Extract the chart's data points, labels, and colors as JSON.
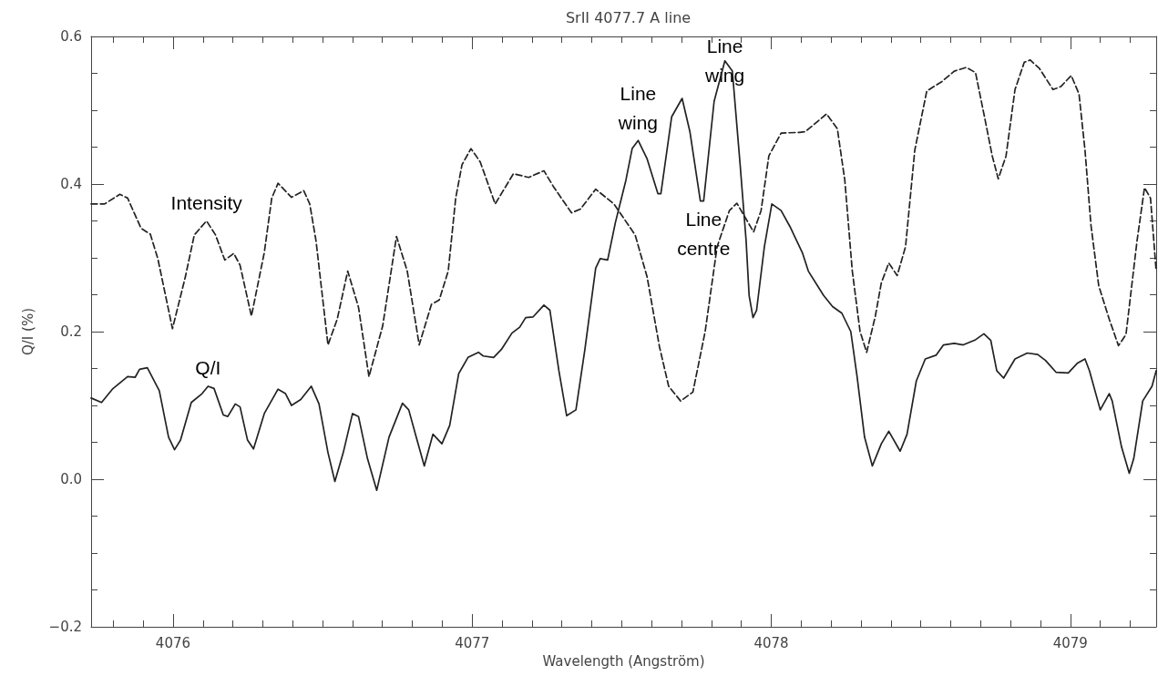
{
  "chart_data": {
    "type": "line",
    "title": "SrII 4077.7 A line",
    "xlabel": "Wavelength (Angström)",
    "ylabel": "Q/I (%)",
    "xlim": [
      4075.726,
      4079.287
    ],
    "xticks": [
      4076,
      4077,
      4078,
      4079
    ],
    "ylim": [
      -0.2,
      0.6
    ],
    "yticks": [
      {
        "value": -0.2,
        "label": "−0.2"
      },
      {
        "value": 0,
        "label": "0.0"
      },
      0.2,
      0.4,
      0.6
    ],
    "grid": false,
    "marker": "none",
    "series": [
      {
        "color": "#222222",
        "line_style": "dashed",
        "x": [
          4075.726,
          4075.771,
          4075.822,
          4075.848,
          4075.893,
          4075.924,
          4075.949,
          4075.998,
          4076.041,
          4076.071,
          4076.112,
          4076.142,
          4076.173,
          4076.203,
          4076.224,
          4076.262,
          4076.305,
          4076.33,
          4076.351,
          4076.396,
          4076.437,
          4076.457,
          4076.478,
          4076.518,
          4076.549,
          4076.584,
          4076.62,
          4076.655,
          4076.701,
          4076.747,
          4076.783,
          4076.823,
          4076.864,
          4076.89,
          4076.92,
          4076.945,
          4076.966,
          4076.996,
          4077.027,
          4077.077,
          4077.138,
          4077.189,
          4077.24,
          4077.271,
          4077.332,
          4077.362,
          4077.413,
          4077.474,
          4077.545,
          4077.585,
          4077.626,
          4077.657,
          4077.697,
          4077.738,
          4077.779,
          4077.819,
          4077.86,
          4077.885,
          4077.911,
          4077.941,
          4077.966,
          4077.992,
          4078.033,
          4078.094,
          4078.114,
          4078.185,
          4078.221,
          4078.246,
          4078.271,
          4078.297,
          4078.319,
          4078.348,
          4078.368,
          4078.393,
          4078.421,
          4078.449,
          4078.48,
          4078.52,
          4078.571,
          4078.612,
          4078.652,
          4078.683,
          4078.713,
          4078.739,
          4078.759,
          4078.785,
          4078.815,
          4078.846,
          4078.866,
          4078.896,
          4078.942,
          4078.968,
          4079.003,
          4079.029,
          4079.049,
          4079.069,
          4079.095,
          4079.13,
          4079.161,
          4079.186,
          4079.223,
          4079.248,
          4079.268,
          4079.287
        ],
        "values": [
          0.373,
          0.373,
          0.386,
          0.381,
          0.34,
          0.332,
          0.299,
          0.204,
          0.274,
          0.331,
          0.35,
          0.331,
          0.297,
          0.306,
          0.29,
          0.221,
          0.307,
          0.381,
          0.401,
          0.382,
          0.391,
          0.373,
          0.323,
          0.182,
          0.217,
          0.282,
          0.233,
          0.139,
          0.208,
          0.329,
          0.282,
          0.182,
          0.237,
          0.243,
          0.282,
          0.381,
          0.426,
          0.448,
          0.43,
          0.373,
          0.414,
          0.409,
          0.418,
          0.397,
          0.361,
          0.366,
          0.393,
          0.373,
          0.331,
          0.274,
          0.18,
          0.126,
          0.106,
          0.118,
          0.2,
          0.315,
          0.364,
          0.374,
          0.356,
          0.335,
          0.364,
          0.438,
          0.469,
          0.47,
          0.471,
          0.495,
          0.475,
          0.405,
          0.282,
          0.2,
          0.172,
          0.221,
          0.266,
          0.293,
          0.276,
          0.315,
          0.446,
          0.526,
          0.539,
          0.553,
          0.558,
          0.551,
          0.491,
          0.438,
          0.407,
          0.438,
          0.528,
          0.565,
          0.568,
          0.557,
          0.528,
          0.532,
          0.547,
          0.522,
          0.446,
          0.344,
          0.262,
          0.217,
          0.181,
          0.196,
          0.323,
          0.395,
          0.381,
          0.282
        ]
      },
      {
        "color": "#222222",
        "line_style": "solid",
        "x": [
          4075.726,
          4075.761,
          4075.797,
          4075.848,
          4075.873,
          4075.888,
          4075.914,
          4075.954,
          4075.985,
          4076.005,
          4076.025,
          4076.061,
          4076.097,
          4076.117,
          4076.137,
          4076.168,
          4076.183,
          4076.208,
          4076.224,
          4076.249,
          4076.269,
          4076.305,
          4076.351,
          4076.376,
          4076.396,
          4076.427,
          4076.462,
          4076.488,
          4076.518,
          4076.541,
          4076.569,
          4076.6,
          4076.62,
          4076.65,
          4076.681,
          4076.722,
          4076.767,
          4076.788,
          4076.813,
          4076.84,
          4076.869,
          4076.899,
          4076.925,
          4076.955,
          4076.986,
          4077.021,
          4077.037,
          4077.072,
          4077.098,
          4077.133,
          4077.159,
          4077.179,
          4077.204,
          4077.24,
          4077.26,
          4077.29,
          4077.316,
          4077.347,
          4077.377,
          4077.413,
          4077.428,
          4077.453,
          4077.479,
          4077.514,
          4077.535,
          4077.555,
          4077.585,
          4077.621,
          4077.631,
          4077.667,
          4077.702,
          4077.728,
          4077.763,
          4077.774,
          4077.809,
          4077.845,
          4077.87,
          4077.896,
          4077.916,
          4077.926,
          4077.939,
          4077.951,
          4077.977,
          4078.002,
          4078.033,
          4078.063,
          4078.104,
          4078.124,
          4078.175,
          4078.205,
          4078.236,
          4078.266,
          4078.287,
          4078.312,
          4078.338,
          4078.368,
          4078.393,
          4078.431,
          4078.454,
          4078.485,
          4078.515,
          4078.551,
          4078.576,
          4078.612,
          4078.642,
          4078.683,
          4078.711,
          4078.734,
          4078.754,
          4078.777,
          4078.815,
          4078.856,
          4078.891,
          4078.917,
          4078.952,
          4078.993,
          4079.023,
          4079.049,
          4079.064,
          4079.1,
          4079.13,
          4079.14,
          4079.171,
          4079.197,
          4079.212,
          4079.242,
          4079.273,
          4079.287
        ],
        "values": [
          0.11,
          0.104,
          0.122,
          0.139,
          0.138,
          0.149,
          0.151,
          0.12,
          0.057,
          0.04,
          0.053,
          0.104,
          0.116,
          0.126,
          0.123,
          0.087,
          0.085,
          0.102,
          0.098,
          0.053,
          0.041,
          0.089,
          0.122,
          0.116,
          0.1,
          0.108,
          0.126,
          0.102,
          0.036,
          -0.003,
          0.036,
          0.089,
          0.085,
          0.028,
          -0.015,
          0.057,
          0.103,
          0.094,
          0.057,
          0.018,
          0.061,
          0.048,
          0.073,
          0.143,
          0.165,
          0.172,
          0.167,
          0.165,
          0.176,
          0.198,
          0.206,
          0.219,
          0.22,
          0.236,
          0.229,
          0.147,
          0.086,
          0.094,
          0.176,
          0.286,
          0.299,
          0.297,
          0.348,
          0.405,
          0.448,
          0.459,
          0.434,
          0.387,
          0.387,
          0.491,
          0.516,
          0.471,
          0.377,
          0.377,
          0.512,
          0.567,
          0.553,
          0.426,
          0.323,
          0.249,
          0.219,
          0.229,
          0.315,
          0.373,
          0.364,
          0.342,
          0.307,
          0.282,
          0.249,
          0.234,
          0.225,
          0.2,
          0.139,
          0.057,
          0.018,
          0.048,
          0.065,
          0.038,
          0.061,
          0.133,
          0.163,
          0.168,
          0.182,
          0.184,
          0.182,
          0.189,
          0.197,
          0.188,
          0.147,
          0.137,
          0.163,
          0.171,
          0.169,
          0.161,
          0.145,
          0.144,
          0.157,
          0.163,
          0.147,
          0.094,
          0.116,
          0.106,
          0.044,
          0.008,
          0.028,
          0.106,
          0.126,
          0.147
        ]
      }
    ],
    "annotations": [
      {
        "text": "Intensity",
        "x": 4076.112,
        "y": 0.35
      },
      {
        "text": "Q/I",
        "x": 4076.117,
        "y": 0.126
      },
      {
        "text": "Line wing",
        "x": 4077.555,
        "y": 0.459
      },
      {
        "text": "Line wing",
        "x": 4077.845,
        "y": 0.567
      },
      {
        "text": "Line centre",
        "x": 4077.774,
        "y": 0.377
      }
    ]
  }
}
